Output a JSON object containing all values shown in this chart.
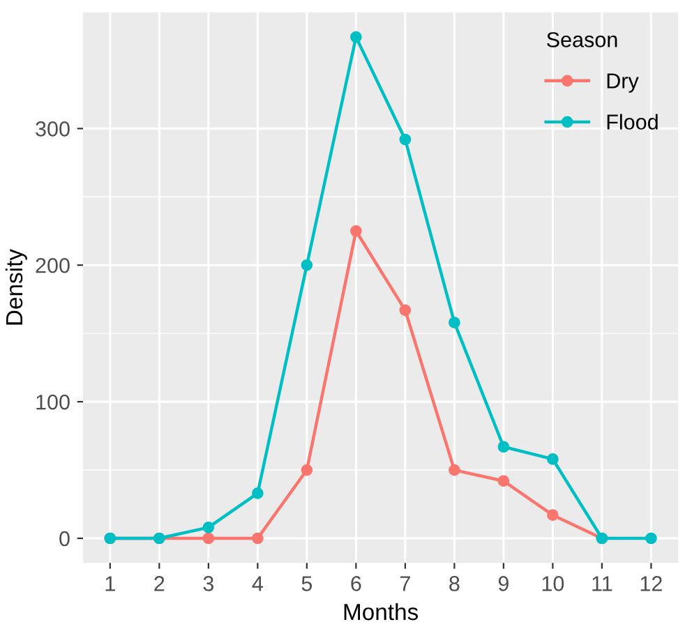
{
  "chart_data": {
    "type": "line",
    "xlabel": "Months",
    "ylabel": "Density",
    "legend_title": "Season",
    "x": [
      1,
      2,
      3,
      4,
      5,
      6,
      7,
      8,
      9,
      10,
      11,
      12
    ],
    "series": [
      {
        "name": "Dry",
        "color": "#f8766d",
        "values": [
          0,
          0,
          0,
          0,
          50,
          225,
          167,
          50,
          42,
          17,
          0,
          null
        ]
      },
      {
        "name": "Flood",
        "color": "#00bfc4",
        "values": [
          0,
          0,
          8,
          33,
          200,
          367,
          292,
          158,
          67,
          58,
          0,
          0
        ]
      }
    ],
    "xlim": [
      0.45,
      12.55
    ],
    "xticks": [
      1,
      2,
      3,
      4,
      5,
      6,
      7,
      8,
      9,
      10,
      11,
      12
    ],
    "ylim": [
      -18,
      385
    ],
    "yticks": [
      0,
      100,
      200,
      300
    ],
    "grid": true,
    "legend": "top right",
    "marker": "circle",
    "line_style": "solid"
  }
}
